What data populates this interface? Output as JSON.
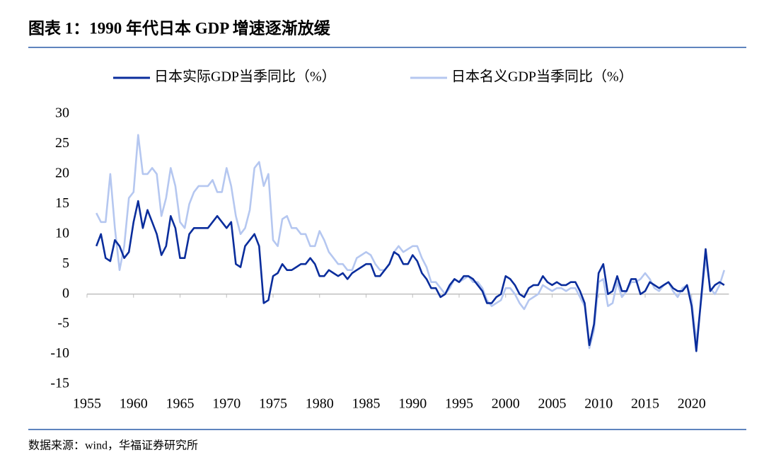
{
  "chart_data": {
    "type": "line",
    "title": "图表 1：1990 年代日本 GDP 增速逐渐放缓",
    "source": "数据来源：wind，华福证券研究所",
    "x": [
      1956,
      1956.5,
      1957,
      1957.5,
      1958,
      1958.5,
      1959,
      1959.5,
      1960,
      1960.5,
      1961,
      1961.5,
      1962,
      1962.5,
      1963,
      1963.5,
      1964,
      1964.5,
      1965,
      1965.5,
      1966,
      1966.5,
      1967,
      1967.5,
      1968,
      1968.5,
      1969,
      1969.5,
      1970,
      1970.5,
      1971,
      1971.5,
      1972,
      1972.5,
      1973,
      1973.5,
      1974,
      1974.5,
      1975,
      1975.5,
      1976,
      1976.5,
      1977,
      1977.5,
      1978,
      1978.5,
      1979,
      1979.5,
      1980,
      1980.5,
      1981,
      1981.5,
      1982,
      1982.5,
      1983,
      1983.5,
      1984,
      1984.5,
      1985,
      1985.5,
      1986,
      1986.5,
      1987,
      1987.5,
      1988,
      1988.5,
      1989,
      1989.5,
      1990,
      1990.5,
      1991,
      1991.5,
      1992,
      1992.5,
      1993,
      1993.5,
      1994,
      1994.5,
      1995,
      1995.5,
      1996,
      1996.5,
      1997,
      1997.5,
      1998,
      1998.5,
      1999,
      1999.5,
      2000,
      2000.5,
      2001,
      2001.5,
      2002,
      2002.5,
      2003,
      2003.5,
      2004,
      2004.5,
      2005,
      2005.5,
      2006,
      2006.5,
      2007,
      2007.5,
      2008,
      2008.5,
      2009,
      2009.5,
      2010,
      2010.5,
      2011,
      2011.5,
      2012,
      2012.5,
      2013,
      2013.5,
      2014,
      2014.5,
      2015,
      2015.5,
      2016,
      2016.5,
      2017,
      2017.5,
      2018,
      2018.5,
      2019,
      2019.5,
      2020,
      2020.5,
      2021,
      2021.5,
      2022,
      2022.5,
      2023,
      2023.5
    ],
    "series": [
      {
        "name": "日本实际GDP当季同比（%）",
        "color": "#0a2d9c",
        "values": [
          8,
          10,
          6,
          5.5,
          9,
          8,
          6,
          7,
          12,
          15.5,
          11,
          14,
          12,
          10,
          6.5,
          8,
          13,
          11,
          6,
          6,
          10,
          11,
          11,
          11,
          11,
          12,
          13,
          12,
          11,
          12,
          5,
          4.5,
          8,
          9,
          10,
          8,
          -1.5,
          -1,
          3,
          3.5,
          5,
          4,
          4,
          4.5,
          5,
          5,
          6,
          5,
          3,
          3,
          4,
          3.5,
          3,
          3.5,
          2.5,
          3.5,
          4,
          4.5,
          5,
          5,
          3,
          3,
          4,
          5,
          7,
          6.5,
          5,
          5,
          6.5,
          5.5,
          3.5,
          2.5,
          1,
          1,
          -0.5,
          0,
          1.5,
          2.5,
          2,
          3,
          3,
          2.5,
          1.5,
          0.5,
          -1.5,
          -1.5,
          -0.5,
          0,
          3,
          2.5,
          1.5,
          0,
          -0.5,
          1,
          1.5,
          1.5,
          3,
          2,
          1.5,
          2,
          1.5,
          1.5,
          2,
          2,
          0.5,
          -1.5,
          -8.5,
          -5,
          3.5,
          5,
          0,
          0.5,
          3,
          0.5,
          0.5,
          2.5,
          2.5,
          0,
          0.5,
          2,
          1.5,
          1,
          1.5,
          2,
          1,
          0.5,
          0.5,
          1.5,
          -2,
          -9.5,
          -1,
          7.5,
          0.5,
          1.5,
          2,
          1.5
        ]
      },
      {
        "name": "日本名义GDP当季同比（%）",
        "color": "#b5c7f0",
        "values": [
          13.5,
          12,
          12,
          20,
          11,
          4,
          8,
          16,
          17,
          26.5,
          20,
          20,
          21,
          20,
          13,
          16,
          21,
          18,
          12,
          11,
          15,
          17,
          18,
          18,
          18,
          19,
          17,
          17,
          21,
          18,
          13,
          10,
          11,
          14,
          21,
          22,
          18,
          20,
          9,
          8,
          12.5,
          13,
          11,
          11,
          10,
          10,
          8,
          8,
          10.5,
          9,
          7,
          6,
          5,
          5,
          4,
          4,
          6,
          6.5,
          7,
          6.5,
          5,
          4,
          4,
          5,
          7,
          8,
          7,
          7.5,
          8,
          8,
          6,
          4.5,
          2,
          2,
          1,
          0,
          1,
          2.5,
          2,
          2.5,
          3,
          2,
          2,
          1,
          -1,
          -2,
          -1.5,
          -1,
          1,
          1,
          0,
          -1.5,
          -2.5,
          -1,
          -0.5,
          0,
          1.5,
          1,
          0.5,
          1,
          1,
          0.5,
          1,
          1,
          -0.5,
          -2,
          -9,
          -6,
          2,
          2.5,
          -2,
          -1.5,
          2,
          -0.5,
          0.5,
          2,
          2,
          2.5,
          3.5,
          2.5,
          1,
          0.5,
          1.5,
          2,
          0.5,
          -0.5,
          1,
          1.5,
          -1,
          -8,
          -1.5,
          6,
          1,
          0,
          1.5,
          4
        ]
      }
    ],
    "xlim": [
      1955,
      2024
    ],
    "xticks": [
      1955,
      1960,
      1965,
      1970,
      1975,
      1980,
      1985,
      1990,
      1995,
      2000,
      2005,
      2010,
      2015,
      2020
    ],
    "ylim": [
      -15,
      30
    ],
    "yticks": [
      -15,
      -10,
      -5,
      0,
      5,
      10,
      15,
      20,
      25,
      30
    ],
    "grid": false
  }
}
